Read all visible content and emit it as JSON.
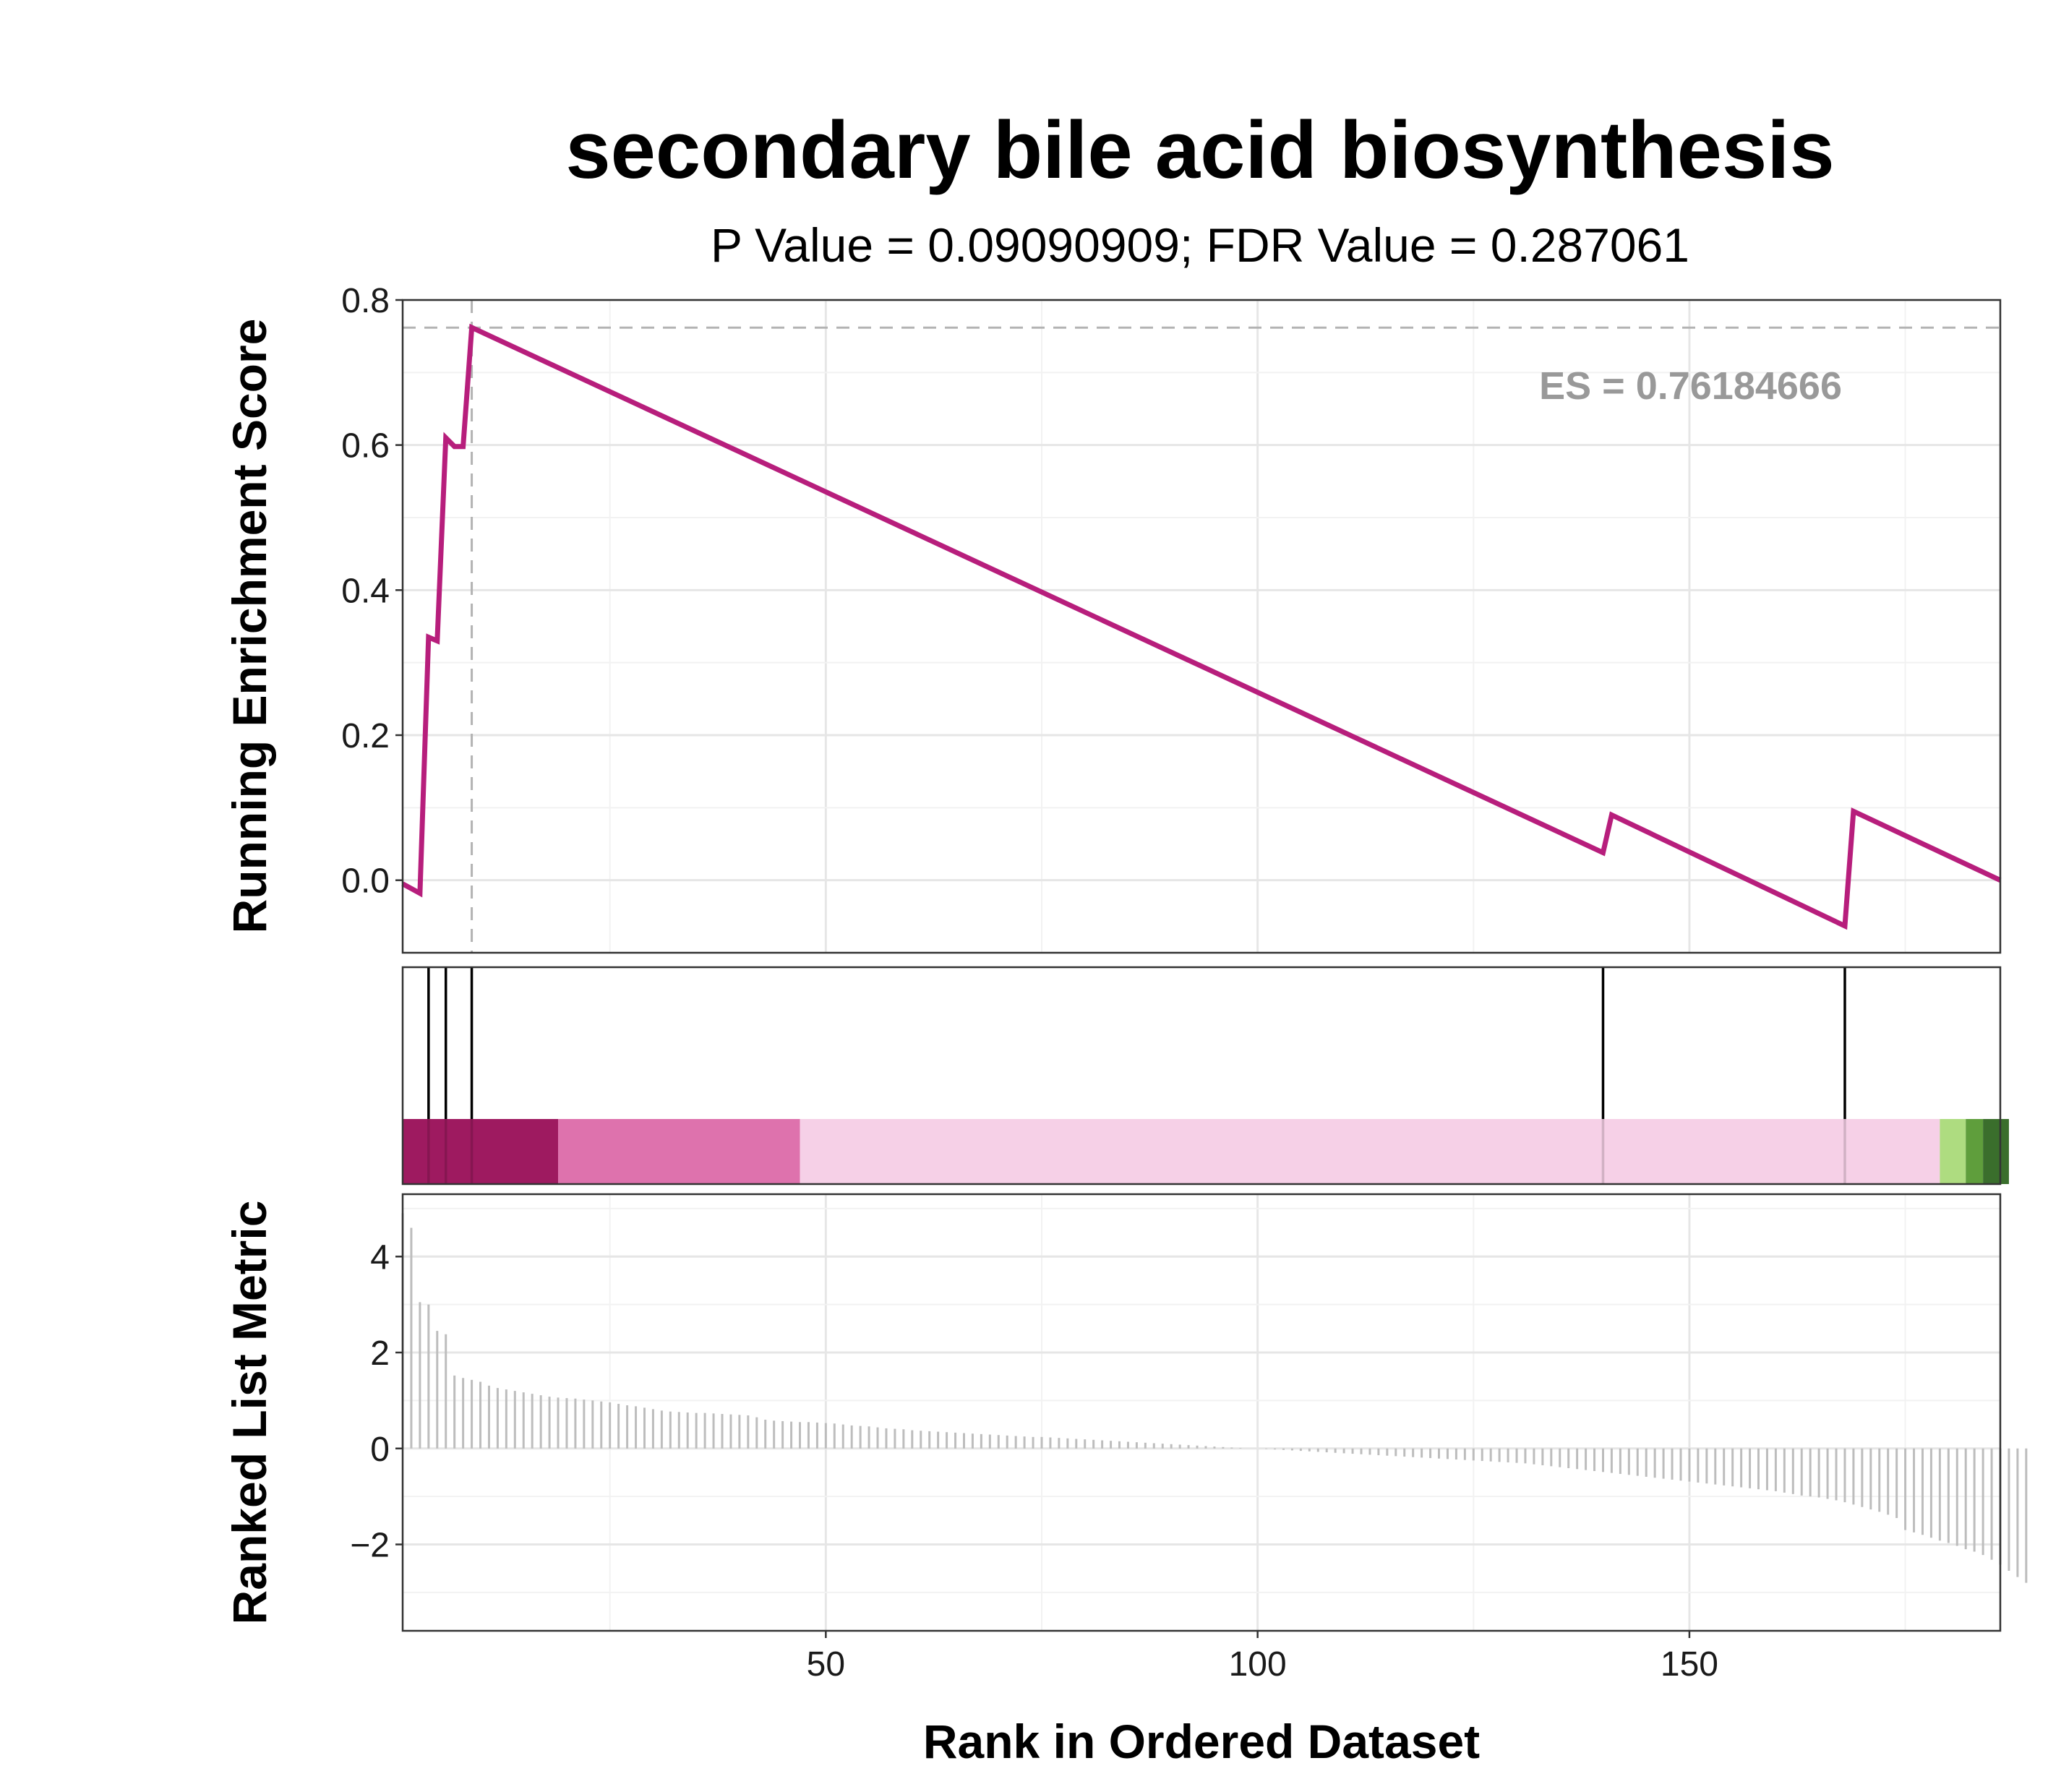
{
  "chart_data": {
    "type": "line",
    "title": "secondary bile acid biosynthesis",
    "subtitle": "P Value = 0.09090909; FDR Value = 0.287061",
    "xlabel": "Rank in Ordered Dataset",
    "es_label": "ES = 0.76184666",
    "es_value": 0.76184666,
    "es_peak_rank": 9,
    "line_color": "#B71E7C",
    "es_color": "#999999",
    "x_ticks": [
      "50",
      "100",
      "150"
    ],
    "x_tick_values": [
      50,
      100,
      150
    ],
    "xlim": [
      1,
      186
    ],
    "grid": true,
    "enrichment": {
      "ylabel": "Running Enrichment Score",
      "ylim": [
        -0.1,
        0.8
      ],
      "y_ticks": [
        "0.0",
        "0.2",
        "0.4",
        "0.6",
        "0.8"
      ],
      "y_tick_values": [
        0.0,
        0.2,
        0.4,
        0.6,
        0.8
      ],
      "x": [
        1,
        3,
        4,
        5,
        6,
        7,
        8,
        9,
        140,
        141,
        168,
        169,
        186
      ],
      "y": [
        -0.005,
        -0.018,
        0.335,
        0.33,
        0.61,
        0.598,
        0.598,
        0.762,
        0.038,
        0.09,
        -0.063,
        0.095,
        0.0
      ]
    },
    "hits": [
      4,
      6,
      9,
      140,
      168
    ],
    "color_bar": [
      {
        "from": 1,
        "to": 19,
        "color": "#9E1A60"
      },
      {
        "from": 19,
        "to": 47,
        "color": "#DE72AD"
      },
      {
        "from": 47,
        "to": 179,
        "color": "#F6D0E7"
      },
      {
        "from": 179,
        "to": 182,
        "color": "#AEDC80"
      },
      {
        "from": 182,
        "to": 184,
        "color": "#5F9E3C"
      },
      {
        "from": 184,
        "to": 187,
        "color": "#3A6E2C"
      }
    ],
    "ranked_metric": {
      "ylabel": "Ranked List Metric",
      "ylim": [
        -3.8,
        5.3
      ],
      "y_ticks": [
        "4",
        "2",
        "0",
        "−2"
      ],
      "y_tick_values": [
        4,
        2,
        0,
        -2
      ],
      "values": [
        4.9,
        4.6,
        3.05,
        3.0,
        2.45,
        2.38,
        1.52,
        1.47,
        1.43,
        1.39,
        1.31,
        1.26,
        1.23,
        1.2,
        1.17,
        1.14,
        1.11,
        1.08,
        1.06,
        1.05,
        1.04,
        1.02,
        1.0,
        0.98,
        0.96,
        0.93,
        0.9,
        0.88,
        0.85,
        0.82,
        0.79,
        0.77,
        0.76,
        0.75,
        0.74,
        0.74,
        0.73,
        0.72,
        0.71,
        0.7,
        0.69,
        0.65,
        0.6,
        0.58,
        0.57,
        0.56,
        0.55,
        0.55,
        0.54,
        0.53,
        0.52,
        0.5,
        0.48,
        0.47,
        0.46,
        0.44,
        0.42,
        0.41,
        0.4,
        0.38,
        0.37,
        0.36,
        0.35,
        0.34,
        0.33,
        0.32,
        0.31,
        0.3,
        0.29,
        0.28,
        0.27,
        0.26,
        0.25,
        0.24,
        0.24,
        0.23,
        0.22,
        0.21,
        0.2,
        0.19,
        0.18,
        0.17,
        0.16,
        0.15,
        0.14,
        0.13,
        0.12,
        0.11,
        0.1,
        0.09,
        0.08,
        0.07,
        0.06,
        0.05,
        0.04,
        0.03,
        0.02,
        0.01,
        0.0,
        0.0,
        -0.01,
        -0.02,
        -0.03,
        -0.04,
        -0.05,
        -0.06,
        -0.07,
        -0.08,
        -0.09,
        -0.1,
        -0.11,
        -0.12,
        -0.13,
        -0.14,
        -0.15,
        -0.16,
        -0.17,
        -0.18,
        -0.19,
        -0.2,
        -0.21,
        -0.22,
        -0.23,
        -0.24,
        -0.25,
        -0.26,
        -0.27,
        -0.28,
        -0.29,
        -0.3,
        -0.31,
        -0.33,
        -0.35,
        -0.37,
        -0.39,
        -0.41,
        -0.43,
        -0.45,
        -0.47,
        -0.49,
        -0.51,
        -0.53,
        -0.55,
        -0.57,
        -0.59,
        -0.61,
        -0.63,
        -0.65,
        -0.67,
        -0.69,
        -0.71,
        -0.73,
        -0.75,
        -0.77,
        -0.79,
        -0.81,
        -0.83,
        -0.85,
        -0.87,
        -0.89,
        -0.92,
        -0.95,
        -0.98,
        -1.0,
        -1.02,
        -1.05,
        -1.08,
        -1.12,
        -1.17,
        -1.22,
        -1.27,
        -1.32,
        -1.38,
        -1.45,
        -1.7,
        -1.75,
        -1.8,
        -1.86,
        -1.92,
        -1.97,
        -2.03,
        -2.1,
        -2.15,
        -2.22,
        -2.32,
        -2.42,
        -2.55,
        -2.68,
        -2.8
      ]
    }
  }
}
